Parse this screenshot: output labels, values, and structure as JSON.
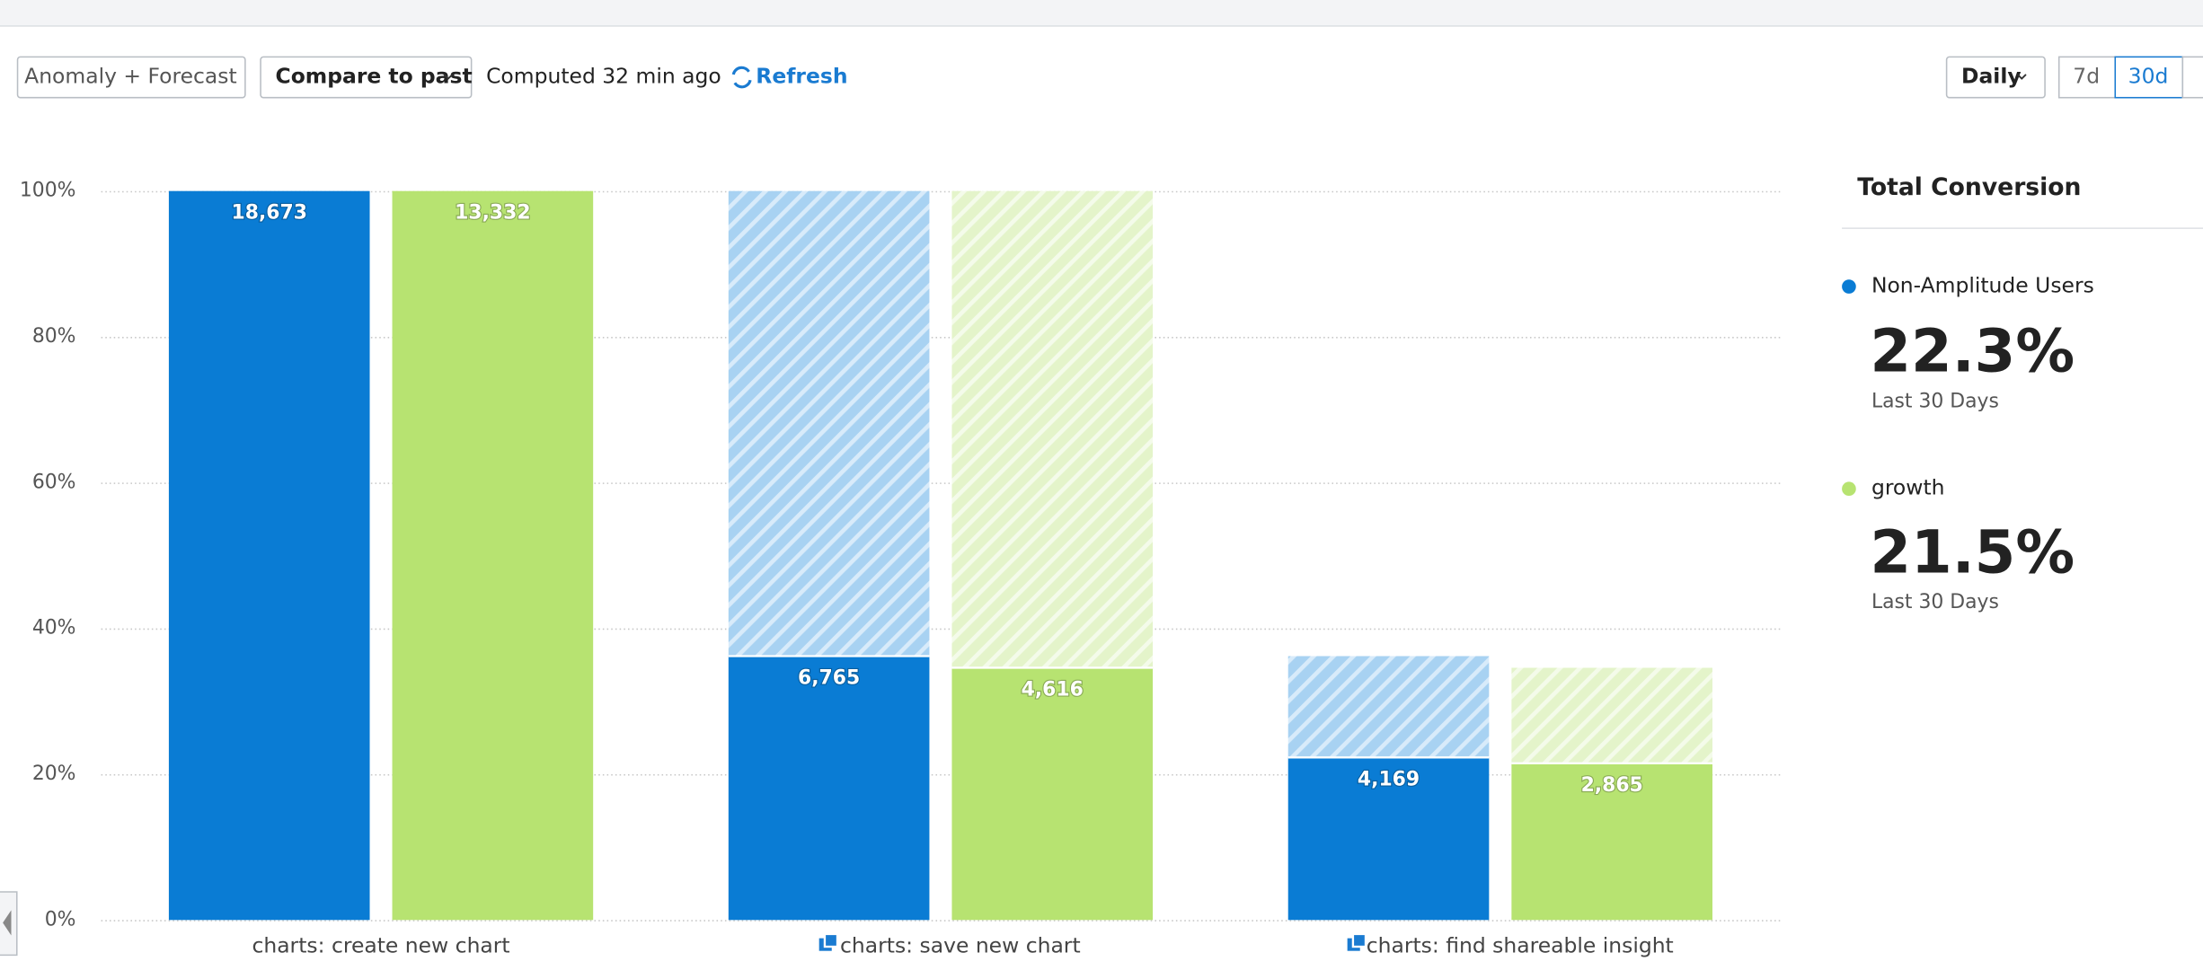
{
  "toolbar": {
    "anomaly_button": "Anomaly + Forecast",
    "compare_button": "Compare to past",
    "computed": "Computed 32 min ago",
    "refresh": "Refresh",
    "interval": "Daily",
    "ranges": [
      "7d",
      "30d"
    ]
  },
  "summary": {
    "title": "Total Conversion",
    "items": [
      {
        "conversion": "22.3%",
        "period": "Last 30 Days"
      },
      {
        "conversion": "21.5%",
        "period": "Last 30 Days"
      }
    ]
  },
  "chart_data": {
    "type": "funnel-bar",
    "categories": [
      "charts: create new chart",
      "charts: save new chart",
      "charts: find shareable insight"
    ],
    "series": [
      {
        "name": "Non-Amplitude Users",
        "color": "#0a7cd4",
        "values": [
          100,
          36.2,
          22.3
        ],
        "counts": [
          18673,
          6765,
          4169
        ],
        "count_labels": [
          "18,673",
          "6,765",
          "4,169"
        ]
      },
      {
        "name": "growth",
        "color": "#b7e371",
        "values": [
          100,
          34.6,
          21.5
        ],
        "counts": [
          13332,
          4616,
          2865
        ],
        "count_labels": [
          "13,332",
          "4,616",
          "2,865"
        ]
      }
    ],
    "ylim": [
      0,
      100
    ],
    "yticks": [
      {
        "value": 0,
        "label": "0%"
      },
      {
        "value": 20,
        "label": "20%"
      },
      {
        "value": 40,
        "label": "40%"
      },
      {
        "value": 60,
        "label": "60%"
      },
      {
        "value": 80,
        "label": "80%"
      },
      {
        "value": 100,
        "label": "100%"
      }
    ],
    "grid": true
  }
}
